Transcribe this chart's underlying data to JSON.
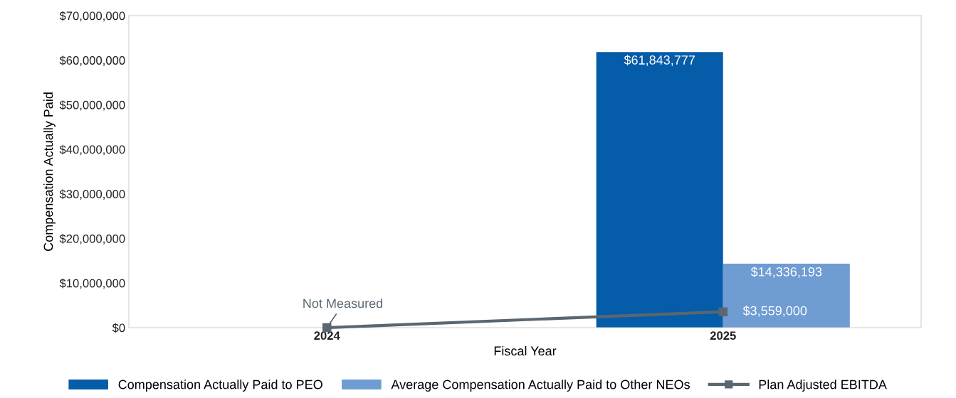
{
  "chart_data": {
    "type": "bar",
    "xlabel": "Fiscal Year",
    "ylabel": "Compensation Actually Paid",
    "categories": [
      "2024",
      "2025"
    ],
    "series": [
      {
        "name": "Compensation Actually Paid to PEO",
        "color": "#055ca8",
        "values": [
          null,
          61843777
        ],
        "value_labels": [
          null,
          "$61,843,777"
        ]
      },
      {
        "name": "Average Compensation Actually Paid to Other NEOs",
        "color": "#6e9cd3",
        "values": [
          null,
          14336193
        ],
        "value_labels": [
          null,
          "$14,336,193"
        ]
      },
      {
        "name": "Plan Adjusted EBITDA",
        "type": "line",
        "color": "#5a6670",
        "marker": "square",
        "values": [
          0,
          3559000
        ],
        "value_labels": [
          null,
          "$3,559,000"
        ]
      }
    ],
    "ylim": [
      0,
      70000000
    ],
    "yticks": [
      {
        "value": 0,
        "label": "$0"
      },
      {
        "value": 10000000,
        "label": "$10,000,000"
      },
      {
        "value": 20000000,
        "label": "$20,000,000"
      },
      {
        "value": 30000000,
        "label": "$30,000,000"
      },
      {
        "value": 40000000,
        "label": "$40,000,000"
      },
      {
        "value": 50000000,
        "label": "$50,000,000"
      },
      {
        "value": 60000000,
        "label": "$60,000,000"
      },
      {
        "value": 70000000,
        "label": "$70,000,000"
      }
    ],
    "annotations": [
      {
        "text": "Not Measured",
        "x": "2024",
        "y": 0
      }
    ],
    "grid": false,
    "legend": "bottom"
  }
}
